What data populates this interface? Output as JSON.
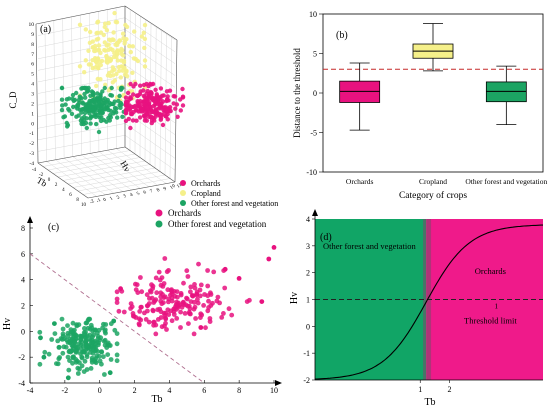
{
  "colors": {
    "orchards": "#e8127f",
    "cropland": "#f5f08a",
    "forest": "#1ca463",
    "forest_region": "#11a566",
    "orchards_region": "#ef1a8a",
    "threshold_line": "#c62828"
  },
  "chart_data": [
    {
      "id": "a",
      "type": "scatter",
      "panel_label": "(a)",
      "projection": "3d",
      "axis_labels": {
        "z": "C_D",
        "x": "Hv",
        "y": "Tb"
      },
      "z_ticks": [
        "-4",
        "-3",
        "-2",
        "-1",
        "0",
        "1",
        "2",
        "3",
        "4",
        "5",
        "6",
        "7",
        "8",
        "9",
        "10"
      ],
      "x_ticks": [
        "-2",
        "-1",
        "0",
        "1",
        "2",
        "3",
        "4",
        "5",
        "6",
        "7",
        "8",
        "9",
        "10",
        "11"
      ],
      "y_ticks": [
        "-4",
        "-2",
        "0",
        "2",
        "4",
        "6",
        "8",
        "10"
      ],
      "legend": [
        "Orchards",
        "Cropland",
        "Other forest and vegetation"
      ],
      "series": [
        {
          "name": "Orchards",
          "color_key": "orchards",
          "count": 220
        },
        {
          "name": "Cropland",
          "color_key": "cropland",
          "count": 170
        },
        {
          "name": "Other forest and vegetation",
          "color_key": "forest",
          "count": 200
        }
      ]
    },
    {
      "id": "b",
      "type": "box",
      "panel_label": "(b)",
      "ylabel": "Distance to the threshold",
      "xlabel": "Category of crops",
      "ylim": [
        -10,
        10
      ],
      "y_ticks": [
        -10,
        -5,
        0,
        5,
        10
      ],
      "threshold": 3,
      "categories": [
        "Orchards",
        "Cropland",
        "Other forest and vegetation"
      ],
      "boxes": [
        {
          "category": "Orchards",
          "color_key": "orchards",
          "whisker_low": -4.7,
          "q1": -1.2,
          "median": 0.2,
          "q3": 1.5,
          "whisker_high": 3.8
        },
        {
          "category": "Cropland",
          "color_key": "cropland",
          "whisker_low": 2.8,
          "q1": 4.4,
          "median": 5.3,
          "q3": 6.2,
          "whisker_high": 8.8
        },
        {
          "category": "Other forest and vegetation",
          "color_key": "forest",
          "whisker_low": -4.0,
          "q1": -1.1,
          "median": 0.2,
          "q3": 1.4,
          "whisker_high": 3.4
        }
      ]
    },
    {
      "id": "c",
      "type": "scatter",
      "panel_label": "(c)",
      "xlabel": "Tb",
      "ylabel": "Hv",
      "xlim": [
        -4,
        10
      ],
      "ylim": [
        -4,
        8
      ],
      "x_ticks": [
        -4,
        -2,
        0,
        2,
        4,
        6,
        8,
        10
      ],
      "y_ticks": [
        -4,
        -2,
        0,
        2,
        4,
        6,
        8
      ],
      "legend": [
        "Orchards",
        "Other forest and vegetation"
      ],
      "separator": {
        "from": [
          -4,
          6
        ],
        "to": [
          6,
          -4
        ]
      },
      "series": [
        {
          "name": "Orchards",
          "color_key": "orchards",
          "count": 190,
          "center": [
            4.2,
            2.3
          ],
          "spread": [
            1.6,
            1.1
          ],
          "anchors": [
            [
              9.7,
              5.6
            ],
            [
              9.3,
              2.3
            ],
            [
              8.0,
              4.1
            ],
            [
              7.2,
              4.8
            ],
            [
              1.2,
              3.3
            ],
            [
              5.8,
              0.3
            ],
            [
              10.0,
              6.5
            ]
          ]
        },
        {
          "name": "Other forest and vegetation",
          "color_key": "forest",
          "count": 210,
          "center": [
            -0.9,
            -1.2
          ],
          "spread": [
            0.9,
            1.0
          ],
          "anchors": [
            [
              -3.4,
              -0.5
            ],
            [
              -3.2,
              -2.0
            ],
            [
              -1.8,
              -3.6
            ],
            [
              0.8,
              0.8
            ],
            [
              -2.6,
              0.6
            ],
            [
              0.6,
              -3.2
            ]
          ]
        }
      ]
    },
    {
      "id": "d",
      "type": "area",
      "panel_label": "(d)",
      "xlabel": "Tb",
      "ylabel": "Hv",
      "xlim": [
        -2.6,
        5.2
      ],
      "ylim": [
        -2,
        4
      ],
      "x_ticks": [
        1,
        2
      ],
      "y_ticks": [
        -2,
        -1,
        0,
        1,
        2,
        3,
        4
      ],
      "regions": [
        {
          "label": "Other forest and vegetation",
          "color_key": "forest_region",
          "x_from": -2.6,
          "x_to": 1.2
        },
        {
          "label": "Orchards",
          "color_key": "orchards_region",
          "x_from": 1.2,
          "x_to": 5.2
        }
      ],
      "threshold": {
        "y": 1,
        "label": "Threshold limit",
        "marker": "1"
      },
      "curve": {
        "type": "sigmoid",
        "lower": -2,
        "upper": 3.8,
        "midpoint": 1.2,
        "steepness": 1.35
      }
    }
  ]
}
